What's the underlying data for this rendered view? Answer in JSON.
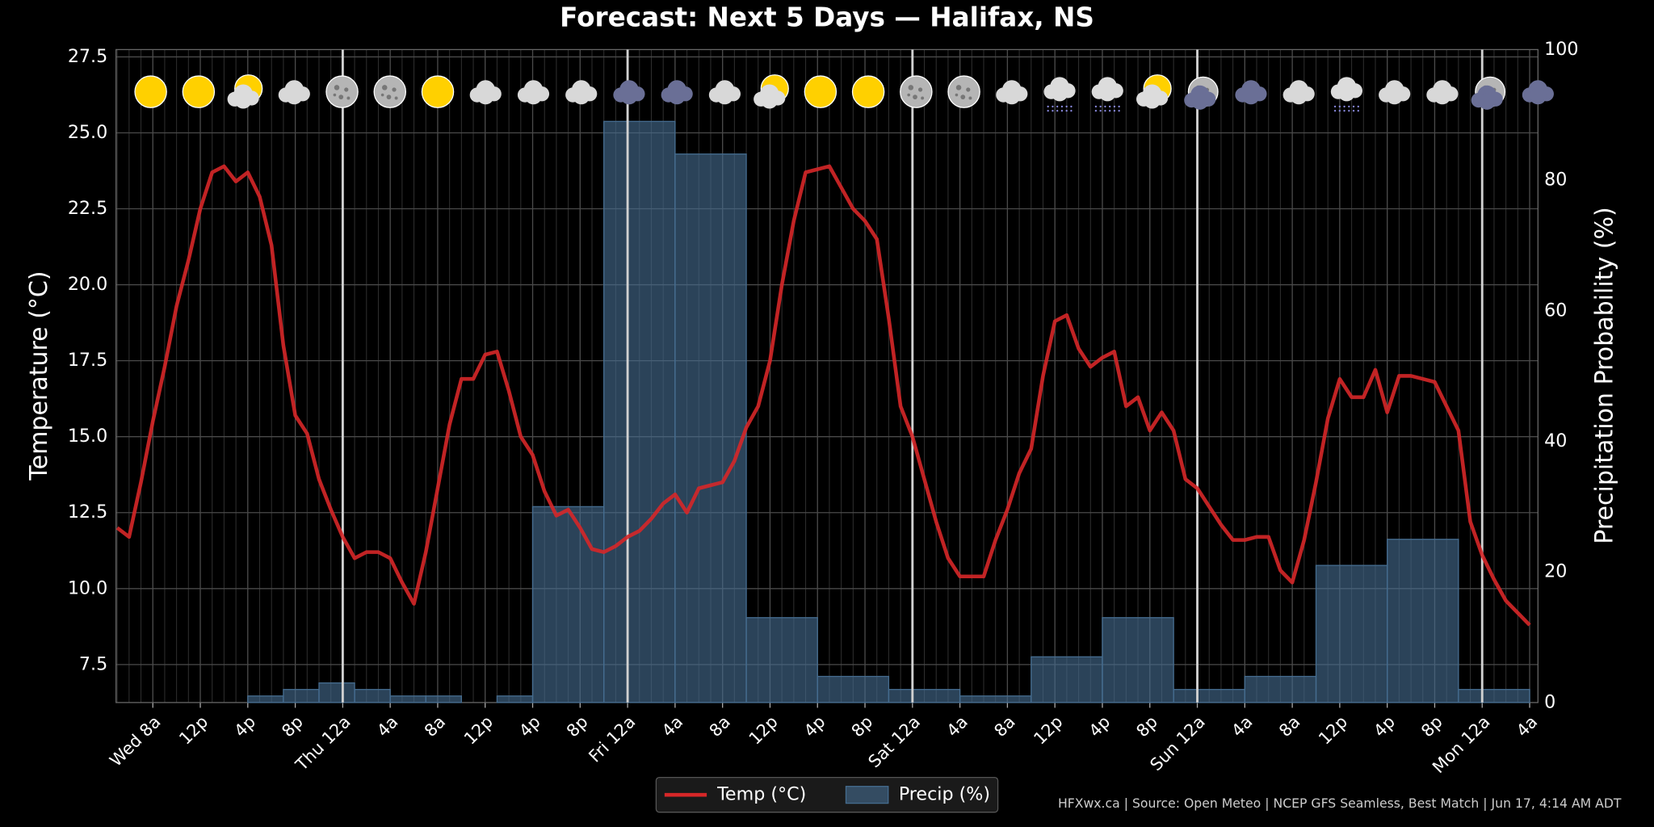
{
  "chart_data": {
    "type": "combo",
    "title": "Forecast: Next 5 Days — Halifax, NS",
    "y_label": "Temperature (°C)",
    "y2_label": "Precipitation Probability (%)",
    "footer": "HFXwx.ca | Source: Open Meteo | NCEP GFS Seamless, Best Match | Jun 17, 4:14 AM ADT",
    "xlim": [
      4.9,
      124.7
    ],
    "xticks": [
      {
        "value": 8,
        "label": "Wed 8a"
      },
      {
        "value": 12,
        "label": "12p"
      },
      {
        "value": 16,
        "label": "4p"
      },
      {
        "value": 20,
        "label": "8p"
      },
      {
        "value": 24,
        "label": "Thu 12a"
      },
      {
        "value": 28,
        "label": "4a"
      },
      {
        "value": 32,
        "label": "8a"
      },
      {
        "value": 36,
        "label": "12p"
      },
      {
        "value": 40,
        "label": "4p"
      },
      {
        "value": 44,
        "label": "8p"
      },
      {
        "value": 48,
        "label": "Fri 12a"
      },
      {
        "value": 52,
        "label": "4a"
      },
      {
        "value": 56,
        "label": "8a"
      },
      {
        "value": 60,
        "label": "12p"
      },
      {
        "value": 64,
        "label": "4p"
      },
      {
        "value": 68,
        "label": "8p"
      },
      {
        "value": 72,
        "label": "Sat 12a"
      },
      {
        "value": 76,
        "label": "4a"
      },
      {
        "value": 80,
        "label": "8a"
      },
      {
        "value": 84,
        "label": "12p"
      },
      {
        "value": 88,
        "label": "4p"
      },
      {
        "value": 92,
        "label": "8p"
      },
      {
        "value": 96,
        "label": "Sun 12a"
      },
      {
        "value": 100,
        "label": "4a"
      },
      {
        "value": 104,
        "label": "8a"
      },
      {
        "value": 108,
        "label": "12p"
      },
      {
        "value": 112,
        "label": "4p"
      },
      {
        "value": 116,
        "label": "8p"
      },
      {
        "value": 120,
        "label": "Mon 12a"
      },
      {
        "value": 124,
        "label": "4a"
      }
    ],
    "day_lines": [
      24,
      48,
      72,
      96,
      120
    ],
    "ylim": [
      6.25,
      27.74
    ],
    "yticks": [
      7.5,
      {
        "value": 10,
        "label": "10.0"
      },
      12.5,
      {
        "value": 15,
        "label": "15.0"
      },
      17.5,
      {
        "value": 20,
        "label": "20.0"
      },
      22.5,
      {
        "value": 25,
        "label": "25.0"
      },
      27.5
    ],
    "y2lim": [
      0,
      100
    ],
    "y2ticks": [
      0,
      20,
      40,
      60,
      80,
      100
    ],
    "grid": true,
    "legend": "bottom",
    "x": [
      5,
      6,
      7,
      8,
      9,
      10,
      11,
      12,
      13,
      14,
      15,
      16,
      17,
      18,
      19,
      20,
      21,
      22,
      23,
      24,
      25,
      26,
      27,
      28,
      29,
      30,
      31,
      32,
      33,
      34,
      35,
      36,
      37,
      38,
      39,
      40,
      41,
      42,
      43,
      44,
      45,
      46,
      47,
      48,
      49,
      50,
      51,
      52,
      53,
      54,
      55,
      56,
      57,
      58,
      59,
      60,
      61,
      62,
      63,
      64,
      65,
      66,
      67,
      68,
      69,
      70,
      71,
      72,
      73,
      74,
      75,
      76,
      77,
      78,
      79,
      80,
      81,
      82,
      83,
      84,
      85,
      86,
      87,
      88,
      89,
      90,
      91,
      92,
      93,
      94,
      95,
      96,
      97,
      98,
      99,
      100,
      101,
      102,
      103,
      104,
      105,
      106,
      107,
      108,
      109,
      110,
      111,
      112,
      113,
      114,
      115,
      116,
      117,
      118,
      119,
      120,
      121,
      122,
      123,
      124
    ],
    "series": [
      {
        "name": "Temp (°C)",
        "type": "line",
        "color": "#d62728",
        "values": [
          12.0,
          11.7,
          13.5,
          15.5,
          17.3,
          19.3,
          20.8,
          22.5,
          23.7,
          23.9,
          23.4,
          23.7,
          22.9,
          21.3,
          18.0,
          15.7,
          15.1,
          13.6,
          12.6,
          11.7,
          11.0,
          11.2,
          11.2,
          11.0,
          10.2,
          9.5,
          11.2,
          13.3,
          15.4,
          16.9,
          16.9,
          17.7,
          17.8,
          16.5,
          15.0,
          14.4,
          13.2,
          12.4,
          12.6,
          12.0,
          11.3,
          11.2,
          11.4,
          11.7,
          11.9,
          12.3,
          12.8,
          13.1,
          12.5,
          13.3,
          13.4,
          13.5,
          14.2,
          15.3,
          16.0,
          17.5,
          20.0,
          22.1,
          23.7,
          23.8,
          23.9,
          23.2,
          22.5,
          22.1,
          21.5,
          18.9,
          16.0,
          15.0,
          13.6,
          12.2,
          11.0,
          10.4,
          10.4,
          10.4,
          11.6,
          12.6,
          13.8,
          14.6,
          17.0,
          18.8,
          19.0,
          17.9,
          17.3,
          17.6,
          17.8,
          16.0,
          16.3,
          15.2,
          15.8,
          15.2,
          13.6,
          13.3,
          12.7,
          12.1,
          11.6,
          11.6,
          11.7,
          11.7,
          10.6,
          10.2,
          11.6,
          13.5,
          15.6,
          16.9,
          16.3,
          16.3,
          17.2,
          15.8,
          17.0,
          17.0,
          16.9,
          16.8,
          16.0,
          15.2,
          12.2,
          11.1,
          10.3,
          9.6,
          9.2,
          8.8
        ]
      },
      {
        "name": "Precip (%)",
        "type": "histogram",
        "axis": "y2",
        "color": "#456c8f",
        "bins": [
          16,
          19,
          22,
          25,
          28,
          31,
          34,
          37,
          40,
          46,
          52,
          58,
          64,
          70,
          76,
          82,
          88,
          94,
          100,
          106,
          112,
          118,
          124
        ],
        "values": [
          1,
          2,
          3,
          2,
          1,
          1,
          0,
          1,
          30,
          89,
          84,
          13,
          4,
          2,
          1,
          7,
          13,
          2,
          4,
          21,
          25,
          2
        ]
      }
    ]
  }
}
